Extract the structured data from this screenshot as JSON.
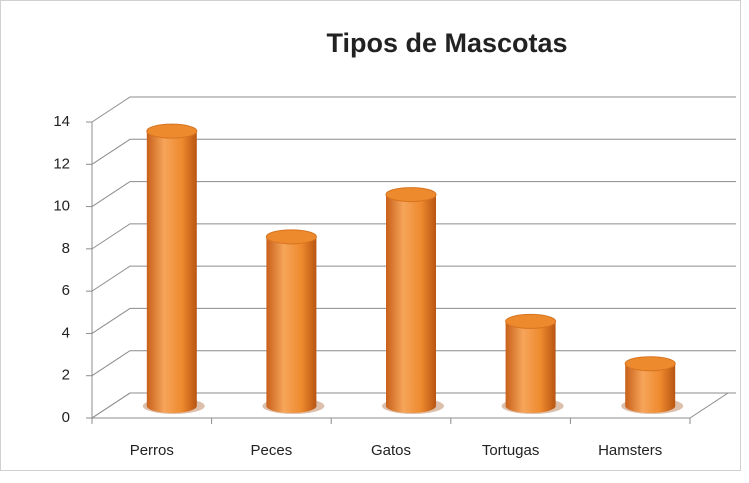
{
  "chart_data": {
    "type": "bar",
    "title": "Tipos de Mascotas",
    "categories": [
      "Perros",
      "Peces",
      "Gatos",
      "Tortugas",
      "Hamsters"
    ],
    "values": [
      13,
      8,
      10,
      4,
      2
    ],
    "color": "#ee8a2e",
    "ylim": [
      0,
      14
    ],
    "yticks": [
      0,
      2,
      4,
      6,
      8,
      10,
      12,
      14
    ],
    "grid": true
  }
}
